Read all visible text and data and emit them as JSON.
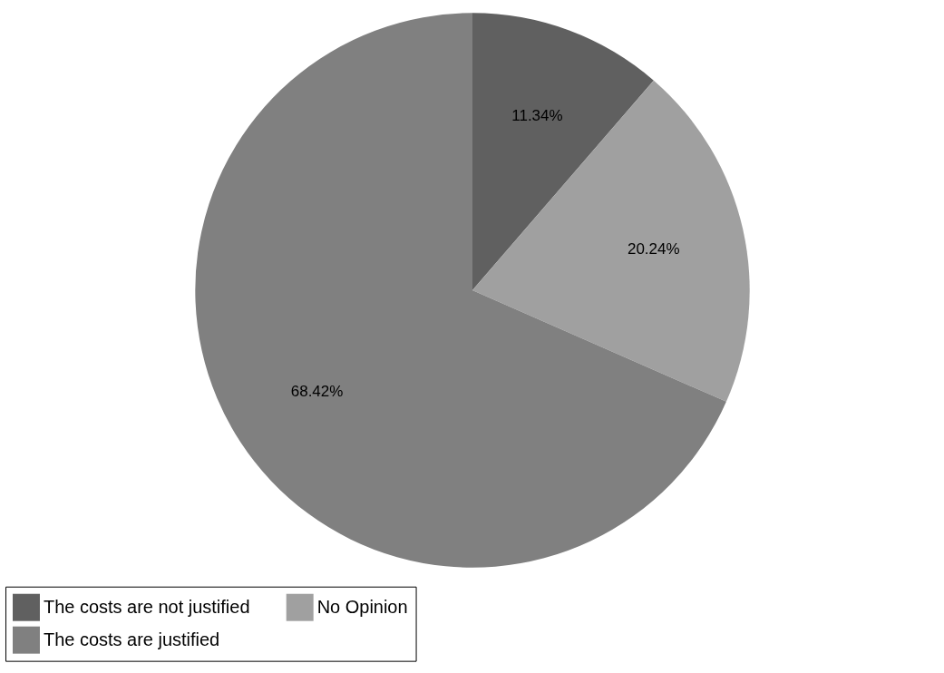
{
  "chart_data": {
    "type": "pie",
    "categories": [
      "The costs are not justified",
      "No Opinion",
      "The costs are justified"
    ],
    "values": [
      11.34,
      20.24,
      68.42
    ],
    "colors": [
      "#606060",
      "#a0a0a0",
      "#808080"
    ],
    "value_labels": [
      "11.34%",
      "20.24%",
      "68.42%"
    ],
    "legend": "bottom"
  }
}
